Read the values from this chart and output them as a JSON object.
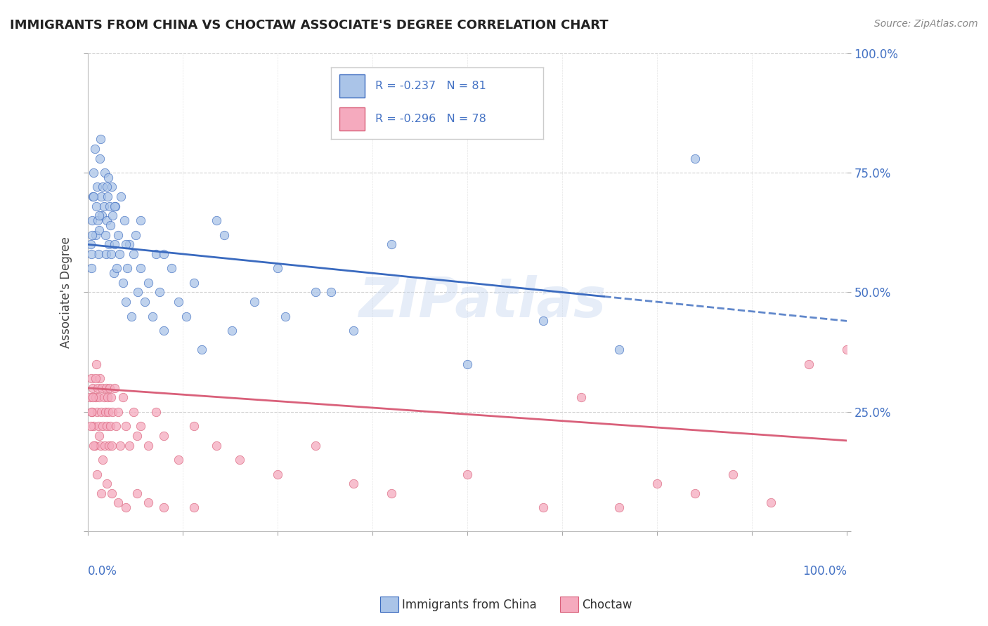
{
  "title": "IMMIGRANTS FROM CHINA VS CHOCTAW ASSOCIATE'S DEGREE CORRELATION CHART",
  "source": "Source: ZipAtlas.com",
  "ylabel": "Associate's Degree",
  "watermark": "ZIPatlas",
  "legend_r1": "R = -0.237",
  "legend_n1": "N = 81",
  "legend_r2": "R = -0.296",
  "legend_n2": "N = 78",
  "label1": "Immigrants from China",
  "label2": "Choctaw",
  "blue_fill": "#aac4e8",
  "pink_fill": "#f5aabe",
  "line_blue": "#3a6abf",
  "line_pink": "#d9607a",
  "text_blue": "#4472c4",
  "background": "#ffffff",
  "grid_color": "#cccccc",
  "blue_scatter_x": [
    0.4,
    0.5,
    0.6,
    0.7,
    0.8,
    0.9,
    1.0,
    1.1,
    1.2,
    1.3,
    1.4,
    1.5,
    1.6,
    1.7,
    1.8,
    1.9,
    2.0,
    2.1,
    2.2,
    2.3,
    2.4,
    2.5,
    2.6,
    2.7,
    2.8,
    2.9,
    3.0,
    3.1,
    3.2,
    3.3,
    3.4,
    3.5,
    3.6,
    3.8,
    4.0,
    4.2,
    4.4,
    4.6,
    4.8,
    5.0,
    5.2,
    5.5,
    5.8,
    6.0,
    6.3,
    6.6,
    7.0,
    7.5,
    8.0,
    8.5,
    9.0,
    9.5,
    10.0,
    11.0,
    12.0,
    13.0,
    14.0,
    15.0,
    17.0,
    19.0,
    22.0,
    26.0,
    30.0,
    35.0,
    40.0,
    50.0,
    60.0,
    70.0,
    80.0,
    32.0,
    25.0,
    18.0,
    10.0,
    7.0,
    5.0,
    3.5,
    2.5,
    1.5,
    0.8,
    0.6,
    0.5
  ],
  "blue_scatter_y": [
    60,
    55,
    65,
    70,
    75,
    80,
    62,
    68,
    72,
    65,
    58,
    63,
    78,
    82,
    70,
    66,
    72,
    68,
    75,
    62,
    58,
    65,
    70,
    74,
    60,
    68,
    64,
    58,
    72,
    66,
    54,
    60,
    68,
    55,
    62,
    58,
    70,
    52,
    65,
    48,
    55,
    60,
    45,
    58,
    62,
    50,
    55,
    48,
    52,
    45,
    58,
    50,
    42,
    55,
    48,
    45,
    52,
    38,
    65,
    42,
    48,
    45,
    50,
    42,
    60,
    35,
    44,
    38,
    78,
    50,
    55,
    62,
    58,
    65,
    60,
    68,
    72,
    66,
    70,
    62,
    58
  ],
  "pink_scatter_x": [
    0.3,
    0.5,
    0.6,
    0.7,
    0.8,
    0.9,
    1.0,
    1.1,
    1.2,
    1.3,
    1.4,
    1.5,
    1.6,
    1.7,
    1.8,
    1.9,
    2.0,
    2.1,
    2.2,
    2.3,
    2.4,
    2.5,
    2.6,
    2.7,
    2.8,
    2.9,
    3.0,
    3.1,
    3.2,
    3.3,
    3.5,
    3.7,
    4.0,
    4.3,
    4.6,
    5.0,
    5.5,
    6.0,
    6.5,
    7.0,
    8.0,
    9.0,
    10.0,
    12.0,
    14.0,
    17.0,
    20.0,
    25.0,
    30.0,
    35.0,
    40.0,
    50.0,
    60.0,
    65.0,
    70.0,
    75.0,
    80.0,
    85.0,
    90.0,
    95.0,
    100.0,
    2.0,
    1.5,
    1.0,
    0.7,
    0.5,
    0.4,
    0.8,
    1.2,
    1.8,
    2.5,
    3.2,
    4.0,
    5.0,
    6.5,
    8.0,
    10.0,
    14.0
  ],
  "pink_scatter_y": [
    28,
    32,
    25,
    30,
    22,
    18,
    28,
    35,
    25,
    30,
    22,
    28,
    32,
    18,
    25,
    30,
    22,
    28,
    18,
    25,
    30,
    22,
    28,
    25,
    18,
    30,
    22,
    28,
    18,
    25,
    30,
    22,
    25,
    18,
    28,
    22,
    18,
    25,
    20,
    22,
    18,
    25,
    20,
    15,
    22,
    18,
    15,
    12,
    18,
    10,
    8,
    12,
    5,
    28,
    5,
    10,
    8,
    12,
    6,
    35,
    38,
    15,
    20,
    32,
    28,
    25,
    22,
    18,
    12,
    8,
    10,
    8,
    6,
    5,
    8,
    6,
    5,
    5
  ],
  "blue_line_x": [
    0.0,
    100.0
  ],
  "blue_line_y": [
    60.0,
    44.0
  ],
  "blue_dash_start_x": 68.0,
  "pink_line_x": [
    0.0,
    100.0
  ],
  "pink_line_y": [
    30.0,
    19.0
  ],
  "xlim": [
    0,
    100
  ],
  "ylim": [
    0,
    100
  ],
  "y_ticks": [
    0,
    25,
    50,
    75,
    100
  ],
  "y_tick_labels_right": [
    "",
    "25.0%",
    "50.0%",
    "75.0%",
    "100.0%"
  ],
  "marker_size": 80
}
